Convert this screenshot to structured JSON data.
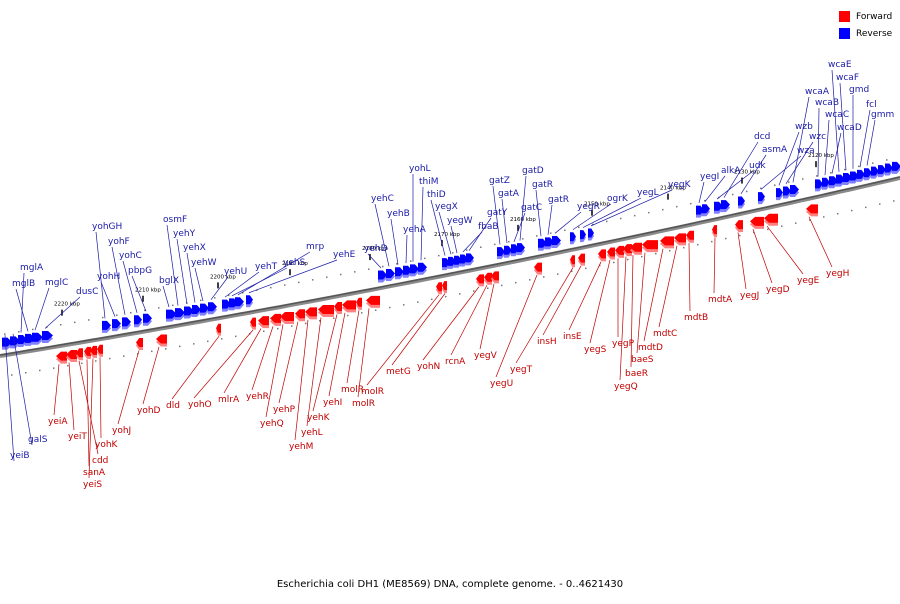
{
  "caption": "Escherichia coli DH1 (ME8569) DNA, complete genome. - 0..4621430",
  "legend": {
    "forward_label": "Forward",
    "reverse_label": "Reverse",
    "forward_color": "#ff0000",
    "reverse_color": "#0000ff"
  },
  "label_colors": {
    "forward": "#c00000",
    "reverse": "#1a1aa8"
  },
  "scale": {
    "unit": "kbp",
    "ticks": [
      {
        "label": "2220 kbp"
      },
      {
        "label": "2210 kbp"
      },
      {
        "label": "2200 kbp"
      },
      {
        "label": "2190 kbp"
      },
      {
        "label": "2180 kbp"
      },
      {
        "label": "2170 kbp"
      },
      {
        "label": "2160 kbp"
      },
      {
        "label": "2150 kbp"
      },
      {
        "label": "2140 kbp"
      },
      {
        "label": "2130 kbp"
      },
      {
        "label": "2120 kbp"
      }
    ]
  },
  "genes_reverse": [
    "yeiB",
    "galS",
    "mglA",
    "mglB",
    "mglC",
    "dusC",
    "yohGH",
    "yohH",
    "yohF",
    "yohC",
    "pbpG",
    "bglX",
    "osmF",
    "yehY",
    "yehX",
    "yehW",
    "yehU",
    "yehT",
    "yehS",
    "mrp",
    "yehE",
    "yehD",
    "yehC",
    "yehB",
    "yehA",
    "yohL",
    "thiM",
    "thiD",
    "yegX",
    "yegW",
    "fbaB",
    "gatY",
    "gatZ",
    "gatA",
    "gatC",
    "gatD",
    "gatR",
    "gatR",
    "yegR",
    "ogrK",
    "yegL",
    "yegK",
    "yegI",
    "alkA",
    "udk",
    "dcd",
    "asmA",
    "wza",
    "wzb",
    "wzc",
    "wcaA",
    "wcaB",
    "wcaC",
    "wcaD",
    "wcaE",
    "wcaF",
    "gmd",
    "fcl",
    "gmm"
  ],
  "genes_forward": [
    "yeiA",
    "yeiT",
    "cdd",
    "sanA",
    "yeiS",
    "yohK",
    "yohJ",
    "yohD",
    "dld",
    "yohO",
    "mlrA",
    "yehR",
    "yehQ",
    "yehP",
    "yehM",
    "yehL",
    "yehK",
    "yehI",
    "molR",
    "molR",
    "molR",
    "metG",
    "yohN",
    "rcnA",
    "yegV",
    "yegU",
    "yegT",
    "insH",
    "insE",
    "yegS",
    "yegP",
    "yegQ",
    "baeR",
    "baeS",
    "mdtD",
    "mdtC",
    "mdtB",
    "mdtA",
    "yegJ",
    "yegD",
    "yegE",
    "yegH"
  ]
}
